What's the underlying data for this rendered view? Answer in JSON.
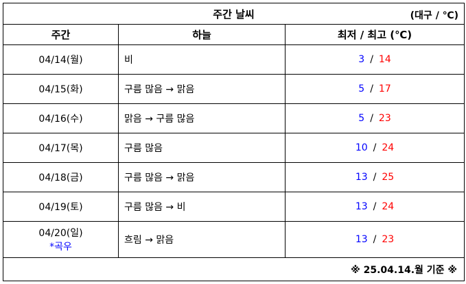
{
  "title": "주간 날씨",
  "unit": "(대구 / ℃)",
  "headers": [
    "주간",
    "하늘",
    "최저 / 최고 (℃)"
  ],
  "rows": [
    {
      "date": "04/14(월)",
      "sky": "비",
      "low": "3",
      "high": "14"
    },
    {
      "date": "04/15(화)",
      "sky": "구름 많음 → 맑음",
      "low": "5",
      "high": "17"
    },
    {
      "date": "04/16(수)",
      "sky": "맑음 → 구름 많음",
      "low": "5",
      "high": "23"
    },
    {
      "date": "04/17(목)",
      "sky": "구름 많음",
      "low": "10",
      "high": "24"
    },
    {
      "date": "04/18(금)",
      "sky": "구름 많음 → 맑음",
      "low": "13",
      "high": "25"
    },
    {
      "date": "04/19(토)",
      "sky": "구름 많음 → 비",
      "low": "13",
      "high": "24"
    },
    {
      "date": "04/20(일)",
      "note": "*곡우",
      "sky": "흐림 → 맑음",
      "low": "13",
      "high": "23"
    }
  ],
  "separator": "/",
  "footer": "※ 25.04.14.월 기준 ※",
  "colors": {
    "low": "#0000ff",
    "high": "#ff0000",
    "note": "#0000ff"
  }
}
